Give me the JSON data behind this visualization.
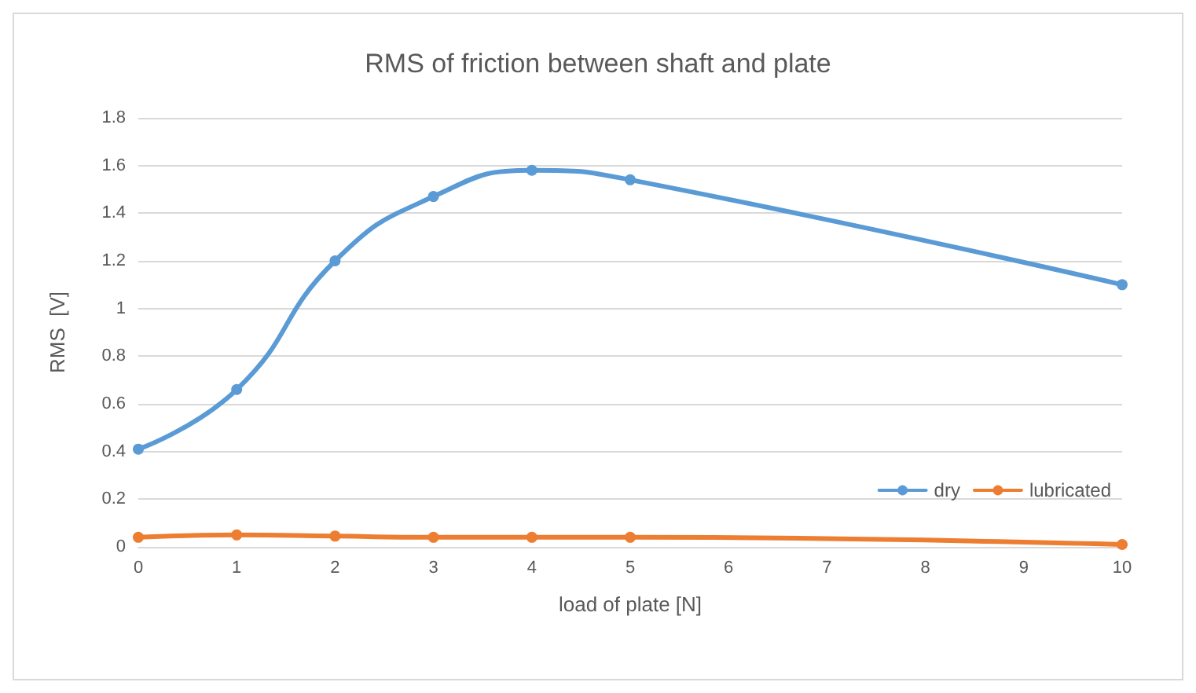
{
  "chart_data": {
    "type": "line",
    "title": "RMS of friction between shaft and plate",
    "xlabel": "load of plate [N]",
    "ylabel": "RMS  [V]",
    "x": [
      0,
      1,
      2,
      3,
      4,
      5,
      10
    ],
    "series": [
      {
        "name": "dry",
        "color": "#5b9bd5",
        "values": [
          0.41,
          0.66,
          1.2,
          1.47,
          1.58,
          1.54,
          1.1
        ]
      },
      {
        "name": "lubricated",
        "color": "#ed7d31",
        "values": [
          0.04,
          0.05,
          0.045,
          0.04,
          0.04,
          0.04,
          0.01
        ]
      }
    ],
    "xlim": [
      0,
      10
    ],
    "xticks": [
      0,
      1,
      2,
      3,
      4,
      5,
      6,
      7,
      8,
      9,
      10
    ],
    "ylim": [
      0,
      1.8
    ],
    "yticks": [
      0,
      0.2,
      0.4,
      0.6,
      0.8,
      1,
      1.2,
      1.4,
      1.6,
      1.8
    ],
    "grid": "y",
    "legend": "bottom right",
    "marker": "circle",
    "line_style": "solid"
  }
}
